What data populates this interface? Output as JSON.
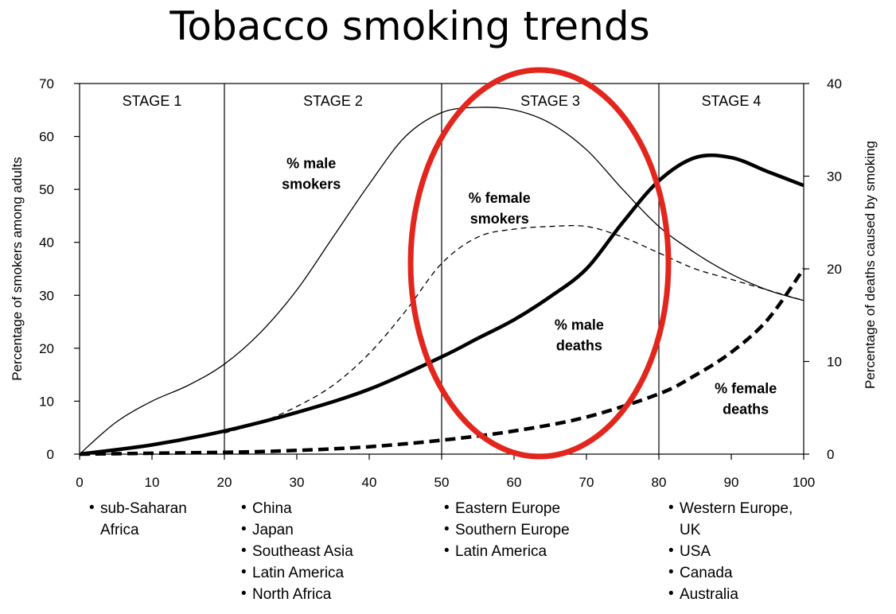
{
  "chart_data": {
    "type": "line",
    "title": "Tobacco smoking trends",
    "xlabel": "",
    "ylabel_left": "Percentage of smokers among adults",
    "ylabel_right": "Percentage of deaths caused by smoking",
    "xlim": [
      0,
      100
    ],
    "ylim_left": [
      0,
      70
    ],
    "ylim_right": [
      0,
      40
    ],
    "x_ticks": [
      0,
      10,
      20,
      30,
      40,
      50,
      60,
      70,
      80,
      90,
      100
    ],
    "y_left_ticks": [
      0,
      10,
      20,
      30,
      40,
      50,
      60,
      70
    ],
    "y_right_ticks": [
      0,
      10,
      20,
      30,
      40
    ],
    "grid": false,
    "stage_boundaries": [
      20,
      50,
      80
    ],
    "stages": [
      {
        "label": "STAGE 1",
        "center": 10
      },
      {
        "label": "STAGE 2",
        "center": 35
      },
      {
        "label": "STAGE 3",
        "center": 65
      },
      {
        "label": "STAGE 4",
        "center": 90
      }
    ],
    "series": [
      {
        "name": "% male smokers",
        "axis": "left",
        "style": "thin-solid",
        "x": [
          0,
          5,
          10,
          15,
          20,
          25,
          30,
          35,
          40,
          45,
          50,
          55,
          60,
          65,
          70,
          75,
          80,
          85,
          90,
          95,
          100
        ],
        "y": [
          0,
          6,
          10,
          13,
          17,
          23,
          31,
          41,
          51,
          60,
          64.5,
          65.5,
          65,
          62.5,
          57.5,
          50,
          43,
          38,
          34,
          31,
          29
        ]
      },
      {
        "name": "% female smokers",
        "axis": "left",
        "style": "thin-dashed",
        "x": [
          20,
          25,
          30,
          35,
          40,
          45,
          50,
          55,
          60,
          65,
          70,
          75,
          80,
          85,
          90,
          95,
          100
        ],
        "y": [
          4,
          6,
          9,
          13,
          19,
          27,
          36,
          41,
          42.5,
          43,
          43,
          41,
          38,
          35,
          33,
          31,
          29
        ]
      },
      {
        "name": "% male deaths",
        "axis": "right",
        "style": "thick-solid",
        "x": [
          0,
          10,
          20,
          30,
          40,
          50,
          55,
          60,
          65,
          70,
          75,
          80,
          85,
          90,
          95,
          100
        ],
        "y": [
          0,
          1,
          2.5,
          4.5,
          7,
          10.5,
          12.5,
          14.5,
          17,
          20,
          25,
          29.5,
          32,
          32,
          30.5,
          29
        ]
      },
      {
        "name": "% female deaths",
        "axis": "right",
        "style": "thick-dashed",
        "x": [
          0,
          20,
          30,
          40,
          50,
          60,
          70,
          80,
          85,
          90,
          95,
          100
        ],
        "y": [
          0,
          0.2,
          0.4,
          0.8,
          1.5,
          2.5,
          4,
          6.5,
          8.5,
          11,
          14.5,
          20
        ]
      }
    ],
    "annotations": [
      {
        "lines": [
          "% male",
          "smokers"
        ],
        "x": 32,
        "y_left": 54
      },
      {
        "lines": [
          "% female",
          "smokers"
        ],
        "x": 58,
        "y_left": 47.5
      },
      {
        "lines": [
          "% male",
          "deaths"
        ],
        "x": 69,
        "y_left": 23.5
      },
      {
        "lines": [
          "% female",
          "deaths"
        ],
        "x": 92,
        "y_left": 11.5
      }
    ],
    "highlight": {
      "shape": "ellipse",
      "color": "#e3261d",
      "around": "STAGE 3"
    },
    "regions": [
      {
        "stage": "STAGE 1",
        "items": [
          "sub-Saharan",
          "Africa"
        ]
      },
      {
        "stage": "STAGE 2",
        "items": [
          "China",
          "Japan",
          "Southeast Asia",
          "Latin America",
          "North Africa"
        ]
      },
      {
        "stage": "STAGE 3",
        "items": [
          "Eastern Europe",
          "Southern Europe",
          "Latin America"
        ]
      },
      {
        "stage": "STAGE 4",
        "items": [
          "Western Europe,",
          "UK",
          "USA",
          "Canada",
          "Australia"
        ]
      }
    ]
  }
}
